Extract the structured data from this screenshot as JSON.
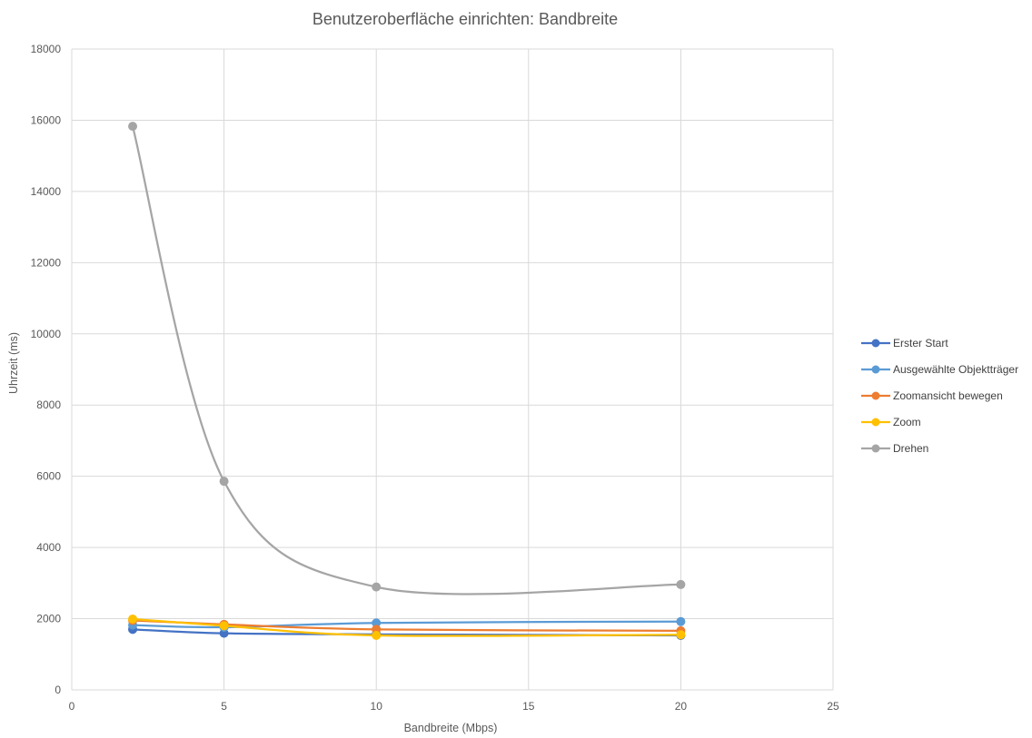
{
  "chart_data": {
    "type": "line",
    "title": "Benutzeroberfläche einrichten: Bandbreite",
    "xlabel": "Bandbreite (Mbps)",
    "ylabel": "Uhrzeit (ms)",
    "xlim": [
      0,
      25
    ],
    "ylim": [
      0,
      18000
    ],
    "xticks": [
      0,
      5,
      10,
      15,
      20,
      25
    ],
    "yticks": [
      0,
      2000,
      4000,
      6000,
      8000,
      10000,
      12000,
      14000,
      16000,
      18000
    ],
    "grid": true,
    "smooth": true,
    "legend_position": "right",
    "x": [
      2,
      5,
      10,
      20
    ],
    "series": [
      {
        "name": "Erster Start",
        "color": "#4472c4",
        "values": [
          1700,
          1590,
          1560,
          1530
        ]
      },
      {
        "name": "Ausgewählte Objektträger",
        "color": "#5b9bd5",
        "values": [
          1820,
          1760,
          1880,
          1920
        ]
      },
      {
        "name": "Zoomansicht bewegen",
        "color": "#ed7d31",
        "values": [
          1950,
          1840,
          1700,
          1660
        ]
      },
      {
        "name": "Zoom",
        "color": "#ffc000",
        "values": [
          1990,
          1800,
          1530,
          1550
        ]
      },
      {
        "name": "Drehen",
        "color": "#a5a5a5",
        "values": [
          15830,
          5860,
          2890,
          2960
        ]
      }
    ]
  }
}
